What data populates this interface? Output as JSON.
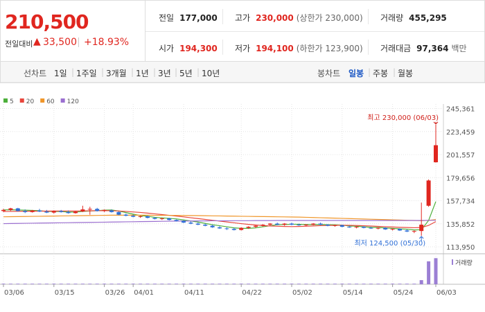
{
  "header": {
    "price": "210,500",
    "change_label": "전일대비",
    "change": "33,500",
    "change_pct": "+18.93%",
    "stats": [
      {
        "label": "전일",
        "value": "177,000"
      },
      {
        "label": "고가",
        "value": "230,000",
        "note": "(상한가 230,000)"
      },
      {
        "label": "거래량",
        "value": "455,295"
      },
      {
        "label": "시가",
        "value": "194,300"
      },
      {
        "label": "저가",
        "value": "194,100",
        "note": "(하한가 123,900)"
      },
      {
        "label": "거래대금",
        "value": "97,364",
        "note": "백만"
      }
    ]
  },
  "toolbar": {
    "line_label": "선차트",
    "line_periods": [
      "1일",
      "1주일",
      "3개월",
      "1년",
      "3년",
      "5년",
      "10년"
    ],
    "candle_label": "봉차트",
    "candle_periods": [
      "일봉",
      "주봉",
      "월봉"
    ]
  },
  "chart_data": {
    "type": "candlestick",
    "up_color": "#e0261f",
    "down_color": "#2f6fd6",
    "categories": [
      "03/06",
      null,
      null,
      null,
      null,
      null,
      null,
      "03/15",
      null,
      null,
      null,
      null,
      null,
      null,
      "03/26",
      null,
      null,
      null,
      "04/01",
      null,
      null,
      null,
      null,
      null,
      null,
      "04/11",
      null,
      null,
      null,
      null,
      null,
      null,
      null,
      "04/22",
      null,
      null,
      null,
      null,
      null,
      null,
      "05/02",
      null,
      null,
      null,
      null,
      null,
      null,
      "05/14",
      null,
      null,
      null,
      null,
      null,
      null,
      "05/24",
      null,
      null,
      null,
      null,
      null,
      "06/03"
    ],
    "open": [
      148000,
      149000,
      150500,
      148000,
      147000,
      148500,
      147500,
      146500,
      148000,
      147000,
      146000,
      147500,
      149500,
      150000,
      148000,
      148500,
      147000,
      144500,
      143500,
      142500,
      143000,
      141500,
      140500,
      141000,
      139500,
      138500,
      137000,
      136000,
      135000,
      134000,
      132500,
      131500,
      131000,
      130000,
      132000,
      133000,
      134000,
      135000,
      136000,
      135000,
      136000,
      135000,
      134500,
      135000,
      136000,
      135000,
      134000,
      134500,
      133000,
      132500,
      133000,
      132000,
      131500,
      132000,
      130500,
      131000,
      129500,
      128500,
      129000,
      153000,
      194300
    ],
    "high": [
      150000,
      151000,
      151000,
      149500,
      149000,
      150000,
      149000,
      148500,
      149000,
      148500,
      148000,
      153000,
      152000,
      151000,
      149500,
      149500,
      147500,
      145500,
      144500,
      143500,
      143500,
      142000,
      141500,
      141500,
      140000,
      139000,
      138000,
      137000,
      136000,
      135000,
      133500,
      132500,
      132000,
      132500,
      133500,
      134500,
      135500,
      136500,
      137000,
      136500,
      137000,
      136000,
      135500,
      136500,
      137000,
      135500,
      135000,
      135000,
      134000,
      133500,
      133500,
      133000,
      132500,
      132500,
      131500,
      131500,
      130500,
      129500,
      156000,
      178000,
      230000
    ],
    "low": [
      147000,
      148000,
      147500,
      146000,
      146500,
      147000,
      146000,
      145500,
      146500,
      145500,
      145500,
      147000,
      144500,
      147500,
      147000,
      146500,
      144000,
      143000,
      142000,
      141500,
      141000,
      140000,
      139500,
      139000,
      138000,
      136500,
      135500,
      134500,
      133500,
      132000,
      131000,
      130000,
      129500,
      129500,
      131000,
      132000,
      133000,
      134000,
      134500,
      134000,
      134500,
      134000,
      133500,
      134500,
      134500,
      133500,
      133000,
      132500,
      132000,
      131500,
      131500,
      131000,
      130500,
      130000,
      129500,
      129000,
      128000,
      127000,
      124500,
      152000,
      194100
    ],
    "close": [
      149000,
      150500,
      148000,
      147000,
      148500,
      147500,
      146500,
      148000,
      147000,
      146000,
      147500,
      149500,
      150000,
      148000,
      149000,
      147000,
      144500,
      143500,
      142500,
      143000,
      141500,
      140500,
      141000,
      139500,
      138500,
      137000,
      136000,
      135000,
      134000,
      132500,
      131500,
      131000,
      130000,
      132000,
      133000,
      134000,
      135000,
      136000,
      135000,
      136000,
      135000,
      134500,
      135000,
      136000,
      135000,
      134000,
      134500,
      133000,
      132500,
      133000,
      132000,
      131500,
      132000,
      130500,
      131000,
      129500,
      128500,
      129000,
      135000,
      177000,
      210500
    ],
    "series": [
      {
        "name": "5",
        "color": "#4caf3a",
        "values": [
          149000,
          149200,
          149000,
          148800,
          148600,
          148300,
          147600,
          147500,
          147500,
          147000,
          147000,
          147600,
          148000,
          148300,
          148800,
          149000,
          148000,
          146500,
          145000,
          143600,
          143000,
          142000,
          141500,
          141000,
          140500,
          139500,
          138500,
          137500,
          136200,
          135000,
          134000,
          133000,
          132000,
          131500,
          131500,
          132000,
          133000,
          134000,
          135000,
          135200,
          135400,
          135400,
          135100,
          135100,
          135200,
          135000,
          134900,
          134600,
          133800,
          133500,
          133000,
          132500,
          132300,
          131900,
          131500,
          131000,
          130700,
          130000,
          130200,
          139000,
          157000
        ]
      },
      {
        "name": "20",
        "color": "#e8463c",
        "values": [
          147500,
          147600,
          147700,
          147800,
          147800,
          147900,
          147900,
          148000,
          148000,
          148000,
          148000,
          148100,
          148200,
          148300,
          148300,
          148300,
          148000,
          147600,
          147100,
          146600,
          146000,
          145300,
          144600,
          143900,
          143200,
          142400,
          141600,
          140800,
          140000,
          139200,
          138400,
          137600,
          136800,
          136000,
          135300,
          134700,
          134200,
          133800,
          133500,
          133300,
          133200,
          133300,
          133500,
          133800,
          134100,
          134300,
          134400,
          134500,
          134400,
          134200,
          134000,
          133700,
          133400,
          133100,
          132800,
          132500,
          132300,
          132100,
          132300,
          134300,
          137900
        ]
      },
      {
        "name": "60",
        "color": "#f0962a",
        "values": [
          142500,
          142600,
          142700,
          142800,
          142900,
          143000,
          143100,
          143200,
          143300,
          143400,
          143500,
          143600,
          143700,
          143800,
          143900,
          144000,
          144000,
          144000,
          144000,
          144000,
          144000,
          143900,
          143900,
          143800,
          143800,
          143700,
          143700,
          143600,
          143500,
          143400,
          143300,
          143200,
          143100,
          143000,
          142900,
          142800,
          142700,
          142600,
          142500,
          142400,
          142300,
          142200,
          142000,
          141800,
          141600,
          141400,
          141200,
          141000,
          140800,
          140600,
          140400,
          140200,
          140000,
          139800,
          139600,
          139400,
          139200,
          139000,
          138800,
          139100,
          139800
        ]
      },
      {
        "name": "120",
        "color": "#9b6fd0",
        "values": [
          136000,
          136100,
          136200,
          136300,
          136400,
          136500,
          136600,
          136700,
          136800,
          136900,
          137000,
          137100,
          137200,
          137300,
          137400,
          137500,
          137600,
          137700,
          137800,
          137900,
          138000,
          138100,
          138200,
          138300,
          138400,
          138500,
          138500,
          138600,
          138600,
          138700,
          138700,
          138700,
          138800,
          138800,
          138800,
          138900,
          138900,
          138900,
          139000,
          139000,
          139000,
          139000,
          139000,
          139000,
          139000,
          139000,
          139000,
          139000,
          139000,
          139000,
          139000,
          139000,
          139000,
          139000,
          139000,
          139000,
          139000,
          139000,
          139000,
          139100,
          139200
        ]
      }
    ],
    "ylim": [
      110000,
      251000
    ],
    "yticks": [
      {
        "value": 245361,
        "label": "245,361"
      },
      {
        "value": 223459,
        "label": "223,459"
      },
      {
        "value": 201557,
        "label": "201,557"
      },
      {
        "value": 179656,
        "label": "179,656"
      },
      {
        "value": 157734,
        "label": "157,734"
      },
      {
        "value": 135852,
        "label": "135,852"
      },
      {
        "value": 113950,
        "label": "113,950"
      }
    ],
    "volume": {
      "name": "거래량",
      "color": "#9b7fd4",
      "ylim": [
        0,
        520000
      ],
      "values": [
        10000,
        10000,
        10000,
        10000,
        10000,
        10000,
        10000,
        10000,
        10000,
        10000,
        10000,
        10000,
        10000,
        10000,
        10000,
        10000,
        10000,
        10000,
        10000,
        10000,
        10000,
        10000,
        10000,
        10000,
        10000,
        10000,
        10000,
        10000,
        10000,
        10000,
        10000,
        10000,
        10000,
        10000,
        10000,
        10000,
        10000,
        10000,
        10000,
        10000,
        10000,
        10000,
        10000,
        10000,
        10000,
        10000,
        10000,
        10000,
        10000,
        10000,
        10000,
        10000,
        10000,
        10000,
        10000,
        10000,
        10000,
        10000,
        72000,
        400000,
        455295
      ]
    },
    "annotations": [
      {
        "text": "최고 230,000 (06/03)",
        "color": "#d0201a"
      },
      {
        "text": "최저 124,500 (05/30)",
        "color": "#2f6fd6"
      }
    ]
  }
}
